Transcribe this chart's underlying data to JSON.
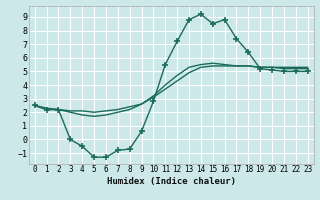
{
  "xlabel": "Humidex (Indice chaleur)",
  "bg_color": "#cce8e8",
  "grid_color": "#ffffff",
  "line_color": "#1a6b5a",
  "xlim": [
    -0.5,
    23.5
  ],
  "ylim": [
    -1.8,
    9.8
  ],
  "xticks": [
    0,
    1,
    2,
    3,
    4,
    5,
    6,
    7,
    8,
    9,
    10,
    11,
    12,
    13,
    14,
    15,
    16,
    17,
    18,
    19,
    20,
    21,
    22,
    23
  ],
  "yticks": [
    -1,
    0,
    1,
    2,
    3,
    4,
    5,
    6,
    7,
    8,
    9
  ],
  "series": [
    {
      "x": [
        0,
        1,
        2,
        3,
        4,
        5,
        6,
        7,
        8,
        9,
        10,
        11,
        12,
        13,
        14,
        15,
        16,
        17,
        18,
        19,
        20,
        21,
        22,
        23
      ],
      "y": [
        2.5,
        2.3,
        2.2,
        2.1,
        2.1,
        2.0,
        2.1,
        2.2,
        2.4,
        2.6,
        3.1,
        3.7,
        4.3,
        4.9,
        5.3,
        5.4,
        5.4,
        5.4,
        5.4,
        5.3,
        5.3,
        5.3,
        5.3,
        5.3
      ],
      "marker": null,
      "lw": 1.0
    },
    {
      "x": [
        0,
        1,
        2,
        3,
        4,
        5,
        6,
        7,
        8,
        9,
        10,
        11,
        12,
        13,
        14,
        15,
        16,
        17,
        18,
        19,
        20,
        21,
        22,
        23
      ],
      "y": [
        2.5,
        2.2,
        2.2,
        2.0,
        1.8,
        1.7,
        1.8,
        2.0,
        2.2,
        2.6,
        3.2,
        4.0,
        4.7,
        5.3,
        5.5,
        5.6,
        5.5,
        5.4,
        5.4,
        5.3,
        5.3,
        5.2,
        5.2,
        5.2
      ],
      "marker": null,
      "lw": 1.0
    },
    {
      "x": [
        0,
        1,
        2,
        3,
        4,
        5,
        6,
        7,
        8,
        9,
        10,
        11,
        12,
        13,
        14,
        15,
        16,
        17,
        18,
        19,
        20,
        21,
        22,
        23
      ],
      "y": [
        2.5,
        2.2,
        2.2,
        0.0,
        -0.5,
        -1.3,
        -1.3,
        -0.8,
        -0.7,
        0.6,
        2.8,
        5.5,
        7.2,
        8.8,
        9.2,
        8.5,
        8.8,
        7.4,
        6.4,
        5.2,
        5.1,
        5.0,
        5.0,
        5.0
      ],
      "marker": "+",
      "lw": 1.0
    }
  ]
}
